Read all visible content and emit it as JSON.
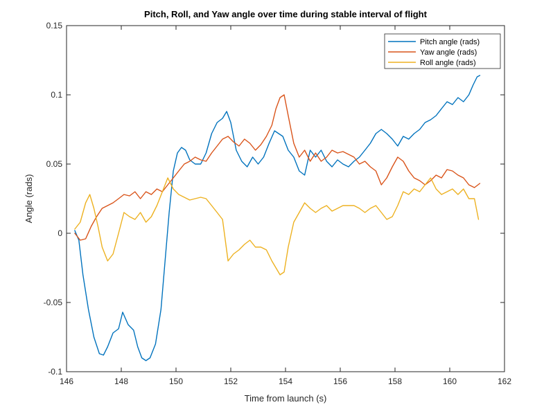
{
  "chart_data": {
    "type": "line",
    "title": "Pitch, Roll, and Yaw angle over time during stable interval of flight",
    "xlabel": "Time from launch (s)",
    "ylabel": "Angle (rads)",
    "xlim": [
      146,
      162
    ],
    "ylim": [
      -0.1,
      0.15
    ],
    "xticks": [
      "146",
      "148",
      "150",
      "152",
      "154",
      "156",
      "158",
      "160",
      "162"
    ],
    "yticks": [
      "-0.1",
      "-0.05",
      "0",
      "0.05",
      "0.1",
      "0.15"
    ],
    "grid": false,
    "legend_position": "top-right",
    "series": [
      {
        "name": "Pitch angle (rads)",
        "color": "#0072BD",
        "x": [
          146.3,
          146.45,
          146.6,
          146.8,
          147.0,
          147.2,
          147.35,
          147.5,
          147.7,
          147.9,
          148.05,
          148.25,
          148.45,
          148.6,
          148.75,
          148.9,
          149.05,
          149.25,
          149.45,
          149.6,
          149.75,
          149.9,
          150.05,
          150.2,
          150.35,
          150.5,
          150.7,
          150.9,
          151.1,
          151.3,
          151.5,
          151.7,
          151.85,
          152.0,
          152.2,
          152.4,
          152.6,
          152.8,
          153.0,
          153.2,
          153.4,
          153.6,
          153.75,
          153.9,
          154.1,
          154.3,
          154.5,
          154.7,
          154.9,
          155.1,
          155.3,
          155.5,
          155.7,
          155.9,
          156.1,
          156.3,
          156.5,
          156.7,
          156.9,
          157.1,
          157.3,
          157.5,
          157.7,
          157.9,
          158.1,
          158.3,
          158.5,
          158.7,
          158.9,
          159.1,
          159.3,
          159.5,
          159.7,
          159.9,
          160.1,
          160.3,
          160.5,
          160.7,
          160.85,
          161.0,
          161.1
        ],
        "y": [
          0.002,
          -0.005,
          -0.03,
          -0.055,
          -0.075,
          -0.087,
          -0.088,
          -0.082,
          -0.072,
          -0.069,
          -0.057,
          -0.066,
          -0.07,
          -0.082,
          -0.09,
          -0.092,
          -0.09,
          -0.08,
          -0.055,
          -0.02,
          0.015,
          0.045,
          0.058,
          0.062,
          0.06,
          0.053,
          0.05,
          0.05,
          0.058,
          0.072,
          0.08,
          0.083,
          0.088,
          0.08,
          0.06,
          0.052,
          0.048,
          0.055,
          0.05,
          0.055,
          0.065,
          0.074,
          0.072,
          0.07,
          0.06,
          0.055,
          0.045,
          0.042,
          0.06,
          0.055,
          0.06,
          0.052,
          0.048,
          0.053,
          0.05,
          0.048,
          0.052,
          0.055,
          0.06,
          0.065,
          0.072,
          0.075,
          0.072,
          0.068,
          0.063,
          0.07,
          0.068,
          0.072,
          0.075,
          0.08,
          0.082,
          0.085,
          0.09,
          0.095,
          0.093,
          0.098,
          0.095,
          0.1,
          0.107,
          0.113,
          0.114
        ]
      },
      {
        "name": "Yaw angle (rads)",
        "color": "#D95319",
        "x": [
          146.3,
          146.5,
          146.7,
          146.9,
          147.1,
          147.3,
          147.5,
          147.7,
          147.9,
          148.1,
          148.3,
          148.5,
          148.7,
          148.9,
          149.1,
          149.3,
          149.5,
          149.7,
          149.9,
          150.1,
          150.3,
          150.5,
          150.7,
          150.9,
          151.1,
          151.3,
          151.5,
          151.7,
          151.9,
          152.1,
          152.3,
          152.5,
          152.7,
          152.9,
          153.1,
          153.3,
          153.5,
          153.65,
          153.8,
          153.95,
          154.1,
          154.3,
          154.5,
          154.7,
          154.9,
          155.1,
          155.3,
          155.5,
          155.7,
          155.9,
          156.1,
          156.3,
          156.5,
          156.7,
          156.9,
          157.1,
          157.3,
          157.5,
          157.7,
          157.9,
          158.1,
          158.3,
          158.5,
          158.7,
          158.9,
          159.1,
          159.3,
          159.5,
          159.7,
          159.9,
          160.1,
          160.3,
          160.5,
          160.7,
          160.9,
          161.1
        ],
        "y": [
          0.0,
          -0.005,
          -0.004,
          0.005,
          0.012,
          0.018,
          0.02,
          0.022,
          0.025,
          0.028,
          0.027,
          0.03,
          0.025,
          0.03,
          0.028,
          0.032,
          0.03,
          0.035,
          0.04,
          0.045,
          0.05,
          0.052,
          0.055,
          0.053,
          0.052,
          0.058,
          0.063,
          0.068,
          0.07,
          0.066,
          0.063,
          0.068,
          0.065,
          0.06,
          0.064,
          0.07,
          0.078,
          0.09,
          0.098,
          0.1,
          0.085,
          0.065,
          0.055,
          0.06,
          0.052,
          0.058,
          0.052,
          0.055,
          0.06,
          0.058,
          0.059,
          0.057,
          0.055,
          0.05,
          0.052,
          0.048,
          0.045,
          0.035,
          0.04,
          0.048,
          0.055,
          0.052,
          0.045,
          0.04,
          0.038,
          0.035,
          0.038,
          0.042,
          0.04,
          0.046,
          0.045,
          0.042,
          0.04,
          0.035,
          0.033,
          0.036
        ]
      },
      {
        "name": "Roll angle (rads)",
        "color": "#EDB120",
        "x": [
          146.3,
          146.5,
          146.7,
          146.85,
          147.0,
          147.15,
          147.3,
          147.5,
          147.7,
          147.9,
          148.1,
          148.3,
          148.5,
          148.7,
          148.9,
          149.1,
          149.3,
          149.5,
          149.7,
          149.9,
          150.1,
          150.3,
          150.5,
          150.7,
          150.9,
          151.1,
          151.3,
          151.5,
          151.7,
          151.9,
          152.1,
          152.3,
          152.5,
          152.7,
          152.9,
          153.1,
          153.3,
          153.5,
          153.65,
          153.8,
          153.95,
          154.1,
          154.3,
          154.5,
          154.7,
          154.9,
          155.1,
          155.3,
          155.5,
          155.7,
          155.9,
          156.1,
          156.3,
          156.5,
          156.7,
          156.9,
          157.1,
          157.3,
          157.5,
          157.7,
          157.9,
          158.1,
          158.3,
          158.5,
          158.7,
          158.9,
          159.1,
          159.3,
          159.5,
          159.7,
          159.9,
          160.1,
          160.3,
          160.5,
          160.7,
          160.9,
          161.05
        ],
        "y": [
          0.003,
          0.008,
          0.022,
          0.028,
          0.018,
          0.005,
          -0.01,
          -0.02,
          -0.015,
          0.0,
          0.015,
          0.012,
          0.01,
          0.015,
          0.008,
          0.012,
          0.02,
          0.03,
          0.04,
          0.032,
          0.028,
          0.026,
          0.024,
          0.025,
          0.026,
          0.025,
          0.02,
          0.015,
          0.01,
          -0.02,
          -0.015,
          -0.012,
          -0.008,
          -0.005,
          -0.01,
          -0.01,
          -0.012,
          -0.02,
          -0.025,
          -0.03,
          -0.028,
          -0.01,
          0.008,
          0.015,
          0.022,
          0.018,
          0.015,
          0.018,
          0.02,
          0.016,
          0.018,
          0.02,
          0.02,
          0.02,
          0.018,
          0.015,
          0.018,
          0.02,
          0.015,
          0.01,
          0.012,
          0.02,
          0.03,
          0.028,
          0.032,
          0.03,
          0.035,
          0.04,
          0.032,
          0.028,
          0.03,
          0.032,
          0.028,
          0.032,
          0.025,
          0.025,
          0.01
        ]
      }
    ]
  }
}
